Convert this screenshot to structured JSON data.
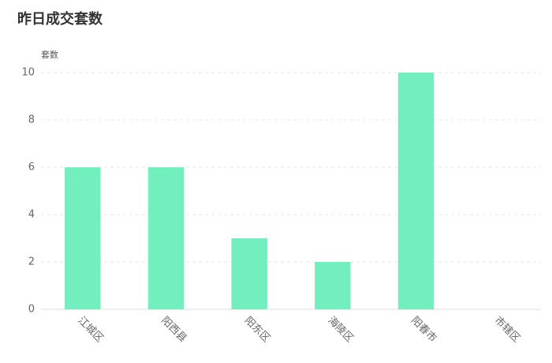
{
  "chart_data": {
    "type": "bar",
    "title": "昨日成交套数",
    "y_label": "套数",
    "categories": [
      "江城区",
      "阳西县",
      "阳东区",
      "海陵区",
      "阳春市",
      "市辖区"
    ],
    "values": [
      6,
      6,
      3,
      2,
      10,
      0
    ],
    "color": "#73eebf",
    "ylim": [
      0,
      10
    ],
    "yticks": [
      0,
      2,
      4,
      6,
      8,
      10
    ],
    "grid": true
  }
}
